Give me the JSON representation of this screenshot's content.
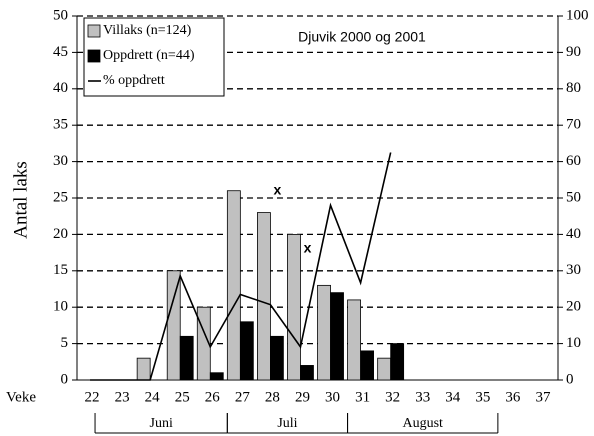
{
  "chart_data": {
    "type": "bar",
    "title": "Djuvik 2000 og 2001",
    "ylabel": "Antal laks",
    "xlabel": "Veke",
    "categories": [
      "22",
      "23",
      "24",
      "25",
      "26",
      "27",
      "28",
      "29",
      "30",
      "31",
      "32",
      "33",
      "34",
      "35",
      "36",
      "37"
    ],
    "series": [
      {
        "name": "Villaks (n=124)",
        "color": "#c0c0c0",
        "values": [
          0,
          0,
          3,
          15,
          10,
          26,
          23,
          20,
          13,
          11,
          3,
          null,
          null,
          null,
          null,
          null
        ]
      },
      {
        "name": "Oppdrett (n=44)",
        "color": "#000000",
        "values": [
          0,
          0,
          0,
          6,
          1,
          8,
          6,
          2,
          12,
          4,
          5,
          null,
          null,
          null,
          null,
          null
        ]
      },
      {
        "name": "% oppdrett",
        "type": "line",
        "axis": "y2",
        "color": "#000000",
        "values": [
          0,
          0,
          0,
          28.6,
          9.1,
          23.5,
          20.7,
          9.1,
          48,
          26.7,
          62.5,
          null,
          null,
          null,
          null,
          null
        ]
      }
    ],
    "ylim": [
      0,
      50
    ],
    "yticks": [
      0,
      5,
      10,
      15,
      20,
      25,
      30,
      35,
      40,
      45,
      50
    ],
    "y2lim": [
      0,
      100
    ],
    "y2ticks": [
      0,
      10,
      20,
      30,
      40,
      50,
      60,
      70,
      80,
      90,
      100
    ],
    "grid": true,
    "legend": "upper left",
    "annotations": [
      {
        "text": "x",
        "category": "28",
        "y": 26
      },
      {
        "text": "x",
        "category": "29",
        "y": 18
      }
    ],
    "months": [
      {
        "label": "Juni",
        "from": "22",
        "to": "26"
      },
      {
        "label": "Juli",
        "from": "27",
        "to": "30"
      },
      {
        "label": "August",
        "from": "31",
        "to": "35"
      }
    ]
  }
}
